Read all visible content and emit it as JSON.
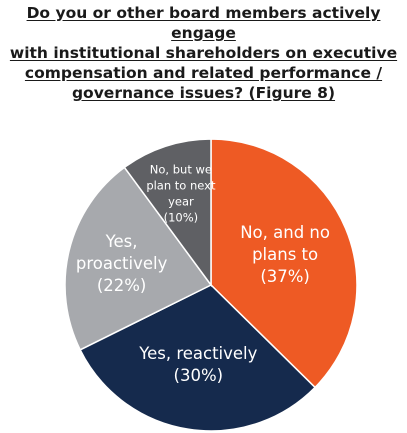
{
  "title": "Do you or other board members actively engage\nwith institutional shareholders on executive\ncompensation and related performance /\ngovernance issues? (Figure 8)",
  "chart_data": {
    "type": "pie",
    "title": "Do you or other board members actively engage with institutional shareholders on executive compensation and related performance / governance issues? (Figure 8)",
    "slices": [
      {
        "label_lines": [
          "No, and no",
          "plans to"
        ],
        "pct_label": "(37%)",
        "value": 37,
        "color": "#ee5a24"
      },
      {
        "label_lines": [
          "Yes, reactively"
        ],
        "pct_label": "(30%)",
        "value": 30,
        "color": "#152a4d"
      },
      {
        "label_lines": [
          "Yes,",
          "proactively"
        ],
        "pct_label": "(22%)",
        "value": 22,
        "color": "#a7a9ad"
      },
      {
        "label_lines": [
          "No, but we",
          "plan to next",
          "year"
        ],
        "pct_label": "(10%)",
        "value": 10,
        "color": "#5f6064"
      }
    ]
  }
}
